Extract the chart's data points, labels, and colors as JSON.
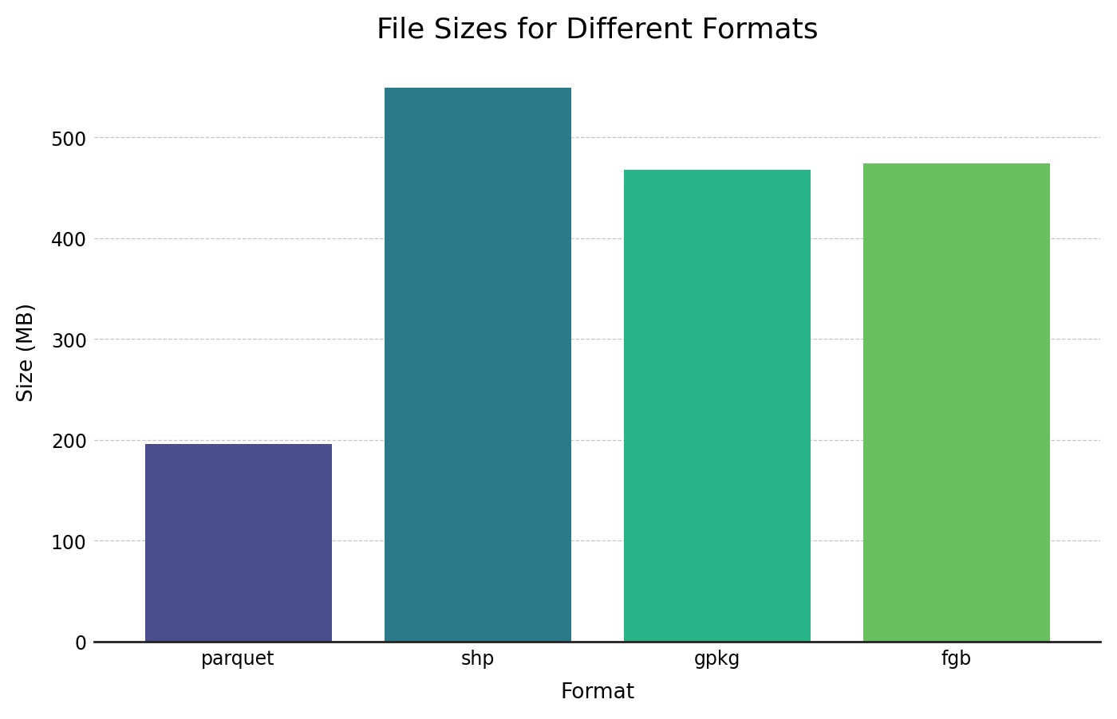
{
  "categories": [
    "parquet",
    "shp",
    "gpkg",
    "fgb"
  ],
  "values": [
    196,
    549,
    468,
    474
  ],
  "bar_colors": [
    "#4a4e8c",
    "#2b7a8a",
    "#2ab589",
    "#6abf5e"
  ],
  "title": "File Sizes for Different Formats",
  "xlabel": "Format",
  "ylabel": "Size (MB)",
  "ylim": [
    0,
    575
  ],
  "yticks": [
    0,
    100,
    200,
    300,
    400,
    500
  ],
  "title_fontsize": 26,
  "label_fontsize": 19,
  "tick_fontsize": 17,
  "background_color": "#ffffff",
  "grid_color": "#bbbbbb",
  "bar_width": 0.78
}
